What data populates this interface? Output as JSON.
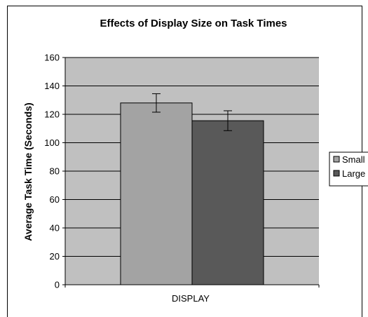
{
  "chart_data": {
    "type": "bar",
    "title": "Effects of Display Size on Task Times",
    "xlabel": "DISPLAY",
    "ylabel": "Average Task Time (Seconds)",
    "ylim": [
      0,
      160
    ],
    "yticks": [
      0,
      20,
      40,
      60,
      80,
      100,
      120,
      140,
      160
    ],
    "categories": [
      ""
    ],
    "series": [
      {
        "name": "Small",
        "values": [
          128
        ],
        "error": [
          6.5
        ],
        "color": "#a3a3a3"
      },
      {
        "name": "Large",
        "values": [
          115.5
        ],
        "error": [
          7
        ],
        "color": "#595959"
      }
    ],
    "plot_background": "#c0c0c0",
    "grid": true,
    "legend_position": "right"
  }
}
